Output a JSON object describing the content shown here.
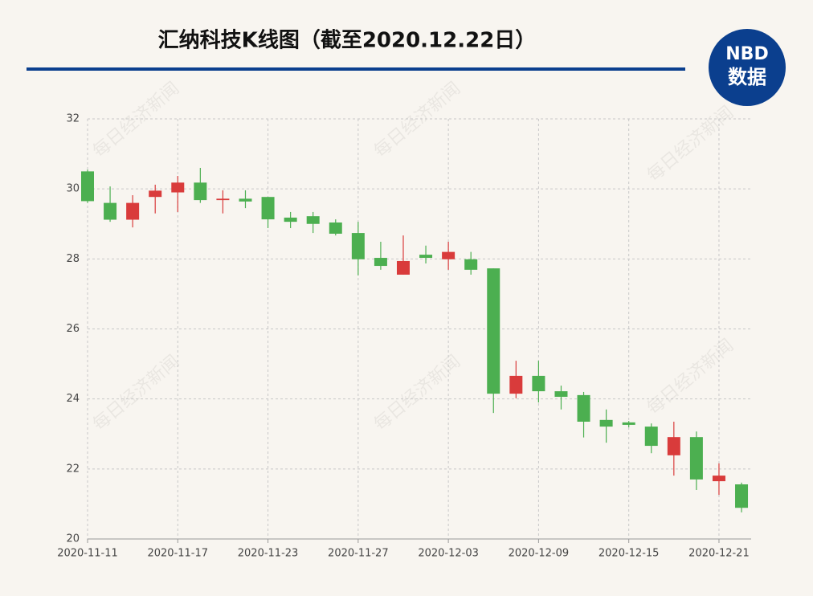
{
  "chart_data": {
    "type": "candlestick",
    "title": "汇纳科技K线图（截至2020.12.22日）",
    "categories": [
      "2020-11-11",
      null,
      null,
      null,
      "2020-11-17",
      null,
      null,
      null,
      "2020-11-23",
      null,
      null,
      null,
      "2020-11-27",
      null,
      null,
      null,
      "2020-12-03",
      null,
      null,
      null,
      "2020-12-09",
      null,
      null,
      null,
      "2020-12-15",
      null,
      null,
      null,
      "2020-12-21",
      null
    ],
    "open": [
      30.5,
      29.6,
      29.12,
      29.77,
      29.9,
      30.18,
      29.68,
      29.72,
      29.77,
      29.18,
      29.22,
      29.04,
      28.74,
      28.03,
      27.55,
      28.12,
      27.99,
      27.99,
      27.73,
      24.15,
      24.66,
      24.22,
      24.11,
      23.4,
      23.33,
      23.21,
      22.39,
      22.91,
      21.65,
      21.56
    ],
    "high": [
      30.55,
      30.07,
      29.82,
      30.12,
      30.37,
      30.6,
      29.96,
      29.96,
      29.77,
      29.34,
      29.34,
      29.13,
      29.06,
      28.49,
      28.67,
      28.38,
      28.49,
      28.2,
      27.73,
      25.09,
      25.09,
      24.38,
      24.2,
      23.7,
      23.37,
      23.3,
      23.35,
      23.07,
      22.16,
      21.61
    ],
    "low": [
      29.6,
      29.06,
      28.9,
      29.3,
      29.34,
      29.6,
      29.3,
      29.45,
      28.88,
      28.88,
      28.74,
      28.67,
      27.53,
      27.69,
      27.55,
      27.87,
      27.69,
      27.55,
      23.6,
      24.02,
      23.9,
      23.7,
      22.9,
      22.75,
      23.19,
      22.45,
      21.81,
      21.4,
      21.26,
      20.76
    ],
    "close": [
      29.65,
      29.12,
      29.6,
      29.95,
      30.18,
      29.68,
      29.72,
      29.64,
      29.13,
      29.06,
      29.0,
      28.72,
      27.99,
      27.8,
      27.94,
      28.03,
      28.2,
      27.69,
      24.15,
      24.66,
      24.22,
      24.06,
      23.35,
      23.21,
      23.26,
      22.66,
      22.91,
      21.7,
      21.81,
      20.89
    ],
    "up_color": "#d93b3b",
    "down_color": "#4caf50",
    "ylim": [
      20,
      32
    ],
    "yticks": [
      20,
      22,
      24,
      26,
      28,
      30,
      32
    ],
    "grid": true
  },
  "logo": {
    "line1": "NBD",
    "line2": "数据"
  },
  "watermark": "每日经济新闻"
}
